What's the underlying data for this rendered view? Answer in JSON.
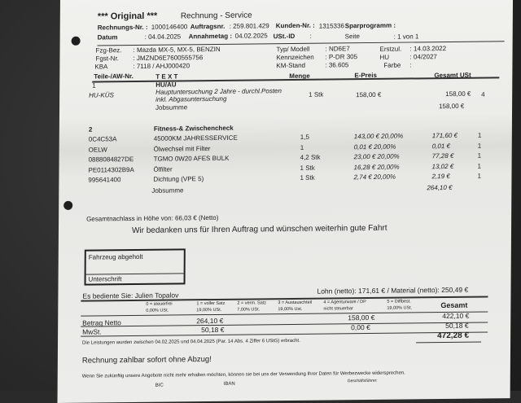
{
  "header": {
    "original": "*** Original ***",
    "title": "Rechnung - Service",
    "rechnungs_nr_label": "Rechnungs-Nr. :",
    "rechnungs_nr": "1000146400",
    "auftragsnr_label": "Auftragsnr.",
    "auftragsnr": ": 259.801.429",
    "kunden_nr_label": "Kunden-Nr. :",
    "kunden_nr": "1315336",
    "sparprogramm_label": "Sparprogramm :",
    "datum_label": "Datum",
    "datum": ": 04.04.2025",
    "annahmetag_label": "Annahmetag :",
    "annahmetag": "04.02.2025",
    "ust_id_label": "USt.-ID",
    "ust_id": ":",
    "seite_label": "Seite",
    "seite": ": 1 von 1"
  },
  "vehicle": {
    "fzg_bez_label": "Fzg-Bez.",
    "fzg_bez": ": Mazda MX-5, MX-5, BENZIN",
    "fgst_label": "Fgst-Nr.",
    "fgst": ": JMZND6E7600555756",
    "kba_label": "KBA",
    "kba": ": 7118 / AHJ000420",
    "typ_label": "Typ/ Modell",
    "typ": ": ND6E7",
    "kennzeichen_label": "Kennzeichen",
    "kennzeichen": ": P-DR 305",
    "km_label": "KM-Stand",
    "km": ": 36.605",
    "erstzul_label": "Erstzul.",
    "erstzul": ": 14.03.2022",
    "hu_label": "HU",
    "hu": ": 04/2027",
    "farbe_label": "Farbe",
    "farbe": ":"
  },
  "table_headers": {
    "teile": "Teile-/AW-Nr.",
    "text": "T E X T",
    "menge": "Menge",
    "epreis": "E-Preis",
    "gesamt": "Gesamt USt"
  },
  "jobs": [
    {
      "no": "1",
      "title": "HU/AU",
      "rows": [
        {
          "nr": "HU-KÜS",
          "text": "Hauptuntersuchung 2 Jahre - durchl.Posten",
          "text2": "inkl. Abgasuntersuchung",
          "menge": "1 Stk",
          "epreis": "158,00 €",
          "gesamt": "158,00 €",
          "ust": "4"
        }
      ],
      "jobsumme_label": "Jobsumme",
      "jobsumme": "158,00 €"
    },
    {
      "no": "2",
      "title": "Fitness-& Zwischencheck",
      "rows": [
        {
          "nr": "0C4C53A",
          "text": "45000KM JAHRESSERVICE",
          "menge": "1,5",
          "epreis": "143,00 € 20,00%",
          "gesamt": "171,60 €",
          "ust": "1"
        },
        {
          "nr": "OELW",
          "text": "Ölwechsel mit Filter",
          "menge": "1",
          "epreis": "0,01 € 20,00%",
          "gesamt": "0,01 €",
          "ust": "1"
        },
        {
          "nr": "0888084827DE",
          "text": "TGMO 0W20 AFES BULK",
          "menge": "4,2 Stk",
          "epreis": "23,00 € 20,00%",
          "gesamt": "77,28 €",
          "ust": "1"
        },
        {
          "nr": "PE0114302B9A",
          "text": "Ölfilter",
          "menge": "1 Stk",
          "epreis": "16,28 € 20,00%",
          "gesamt": "13,02 €",
          "ust": "1"
        },
        {
          "nr": "995641400",
          "text": "Dichtung (VPE 5)",
          "menge": "1 Stk",
          "epreis": "2,74 € 20,00%",
          "gesamt": "2,19 €",
          "ust": "1"
        }
      ],
      "jobsumme_label": "Jobsumme",
      "jobsumme": "264,10 €"
    }
  ],
  "discount": "Gesamtnachlass in Höhe von: 66,03 € (Netto)",
  "thanks": "Wir bedanken uns für Ihren Auftrag und wünschen weiterhin gute Fahrt",
  "pickup": {
    "label": "Fahrzeug abgeholt",
    "signature": "Unterschrift"
  },
  "served_by": "Es bediente Sie: Julien Topalov",
  "lohn_material": "Lohn (netto): 171,61 € / Material (netto): 250,49 €",
  "tax_headers": [
    [
      "0 = steuerfrei",
      "0,00%  USt."
    ],
    [
      "1 = voller Satz",
      "19,00% USt."
    ],
    [
      "2 = verm. Satz",
      "7,00% USt."
    ],
    [
      "3 = Austauschteil",
      "19,00% Ust."
    ],
    [
      "4 = Agenturware / DP",
      "nicht steuerbar"
    ],
    [
      "5 = Diffbest.",
      "19,00% USt."
    ]
  ],
  "gesamt_label": "Gesamt",
  "netto": {
    "label": "Betrag Netto",
    "voll": "264,10 €",
    "agentur": "158,00 €",
    "gesamt": "422,10 €"
  },
  "mwst": {
    "label": "MwSt.",
    "voll": "50,18 €",
    "agentur": "0,00 €",
    "gesamt": "50,18 €"
  },
  "total": "472,28 €",
  "leistung_note": "Die Leistungen wurden zwischen 04.02.2025 und 04.04.2025 (Par. 14 Abs. 4 Ziffer 6 UStG) erbracht.",
  "payment": "Rechnung zahlbar sofort ohne Abzug!",
  "ads_note": "Wenn Sie zukünftig unsere Angebote nicht mehr erhalten möchten, können sie bei uns der Verwendung Ihrer Daten für Werbezwecke widersprechen.",
  "footer": {
    "bic": "BIC",
    "iban": "IBAN",
    "gf": "Geschäftsführer:"
  }
}
